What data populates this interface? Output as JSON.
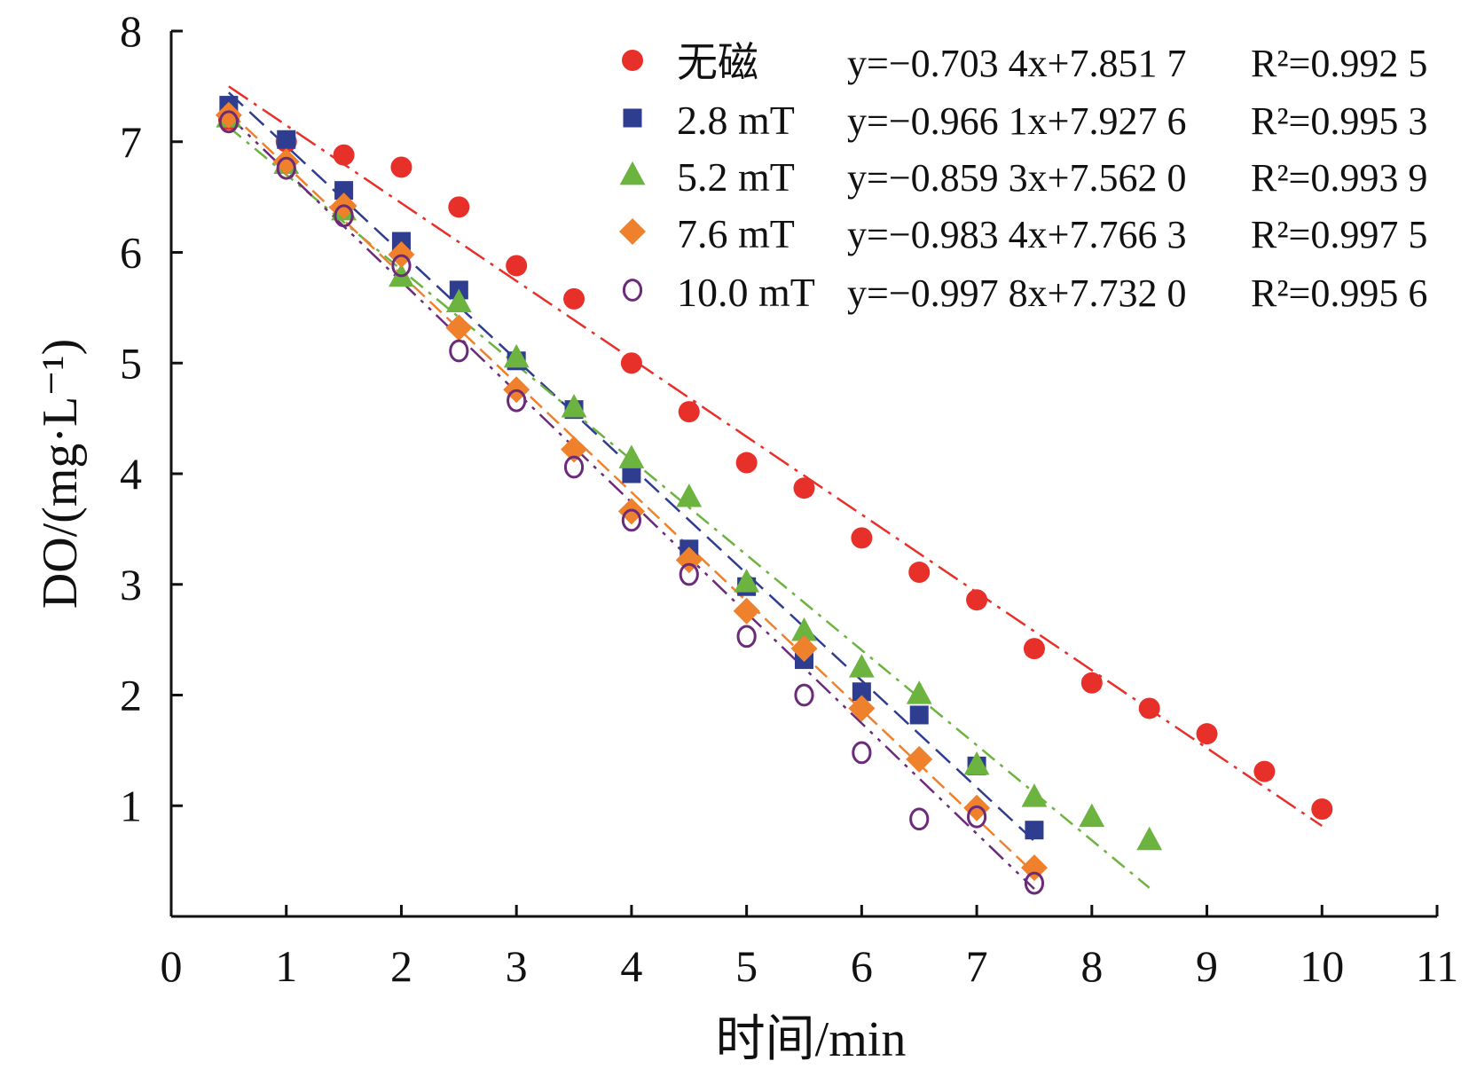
{
  "chart_data": {
    "type": "scatter",
    "xlabel": "时间/min",
    "ylabel": "DO/(mg·L⁻¹)",
    "xlim": [
      0,
      11
    ],
    "ylim": [
      0,
      8
    ],
    "xticks": [
      0,
      1,
      2,
      3,
      4,
      5,
      6,
      7,
      8,
      9,
      10,
      11
    ],
    "yticks": [
      1,
      2,
      3,
      4,
      5,
      6,
      7,
      8
    ],
    "grid": false,
    "legend_position": "top-right",
    "series": [
      {
        "name": "无磁",
        "marker": "circle",
        "color": "#e8302a",
        "fit": {
          "slope": -0.7034,
          "intercept": 7.8517,
          "x_range": [
            0.5,
            10
          ]
        },
        "equation": "y=−0.703 4x+7.851 7",
        "r2": "R²=0.992 5",
        "x": [
          0.5,
          1,
          1.5,
          2,
          2.5,
          3,
          3.5,
          4,
          4.5,
          5,
          5.5,
          6,
          6.5,
          7,
          7.5,
          8,
          8.5,
          9,
          9.5,
          10
        ],
        "y": [
          7.2,
          7.0,
          6.88,
          6.77,
          6.41,
          5.88,
          5.58,
          5.0,
          4.56,
          4.1,
          3.87,
          3.42,
          3.11,
          2.86,
          2.42,
          2.11,
          1.88,
          1.65,
          1.31,
          0.97
        ]
      },
      {
        "name": "2.8 mT",
        "marker": "square",
        "color": "#2e3d8f",
        "fit": {
          "slope": -0.9661,
          "intercept": 7.9276,
          "x_range": [
            0.5,
            7.5
          ]
        },
        "equation": "y=−0.966 1x+7.927 6",
        "r2": "R²=0.995 3",
        "x": [
          0.5,
          1,
          1.5,
          2,
          2.5,
          3,
          3.5,
          4,
          4.5,
          5,
          5.5,
          6,
          6.5,
          7,
          7.5
        ],
        "y": [
          7.33,
          7.02,
          6.56,
          6.1,
          5.66,
          5.02,
          4.58,
          4.0,
          3.32,
          2.98,
          2.32,
          2.03,
          1.82,
          1.36,
          0.78
        ]
      },
      {
        "name": "5.2 mT",
        "marker": "triangle",
        "color": "#6cb33f",
        "fit": {
          "slope": -0.8593,
          "intercept": 7.562,
          "x_range": [
            0.5,
            8.5
          ]
        },
        "equation": "y=−0.859 3x+7.562 0",
        "r2": "R²=0.993 9",
        "x": [
          0.5,
          1,
          1.5,
          2,
          2.5,
          3,
          3.5,
          4,
          4.5,
          5,
          5.5,
          6,
          6.5,
          7,
          7.5,
          8,
          8.5
        ],
        "y": [
          7.22,
          6.8,
          6.38,
          5.78,
          5.55,
          5.05,
          4.6,
          4.14,
          3.79,
          3.02,
          2.58,
          2.25,
          2.01,
          1.37,
          1.08,
          0.9,
          0.69
        ]
      },
      {
        "name": "7.6 mT",
        "marker": "diamond",
        "color": "#f0812c",
        "fit": {
          "slope": -0.9834,
          "intercept": 7.7663,
          "x_range": [
            0.5,
            7.5
          ]
        },
        "equation": "y=−0.983 4x+7.766 3",
        "r2": "R²=0.997 5",
        "x": [
          0.5,
          1,
          1.5,
          2,
          2.5,
          3,
          3.5,
          4,
          4.5,
          5,
          5.5,
          6,
          6.5,
          7,
          7.5
        ],
        "y": [
          7.24,
          6.82,
          6.42,
          5.98,
          5.32,
          4.76,
          4.22,
          3.66,
          3.22,
          2.76,
          2.42,
          1.88,
          1.42,
          0.98,
          0.44
        ]
      },
      {
        "name": "10.0 mT",
        "marker": "open-circle",
        "color": "#6b2a7a",
        "fit": {
          "slope": -0.9978,
          "intercept": 7.732,
          "x_range": [
            0.5,
            7.5
          ]
        },
        "equation": "y=−0.997 8x+7.732 0",
        "r2": "R²=0.995 6",
        "x": [
          0.5,
          1,
          1.5,
          2,
          2.5,
          3,
          3.5,
          4,
          4.5,
          5,
          5.5,
          6,
          6.5,
          7,
          7.5
        ],
        "y": [
          7.18,
          6.76,
          6.33,
          5.88,
          5.11,
          4.66,
          4.06,
          3.58,
          3.09,
          2.53,
          2.0,
          1.48,
          0.88,
          0.9,
          0.3
        ]
      }
    ]
  }
}
